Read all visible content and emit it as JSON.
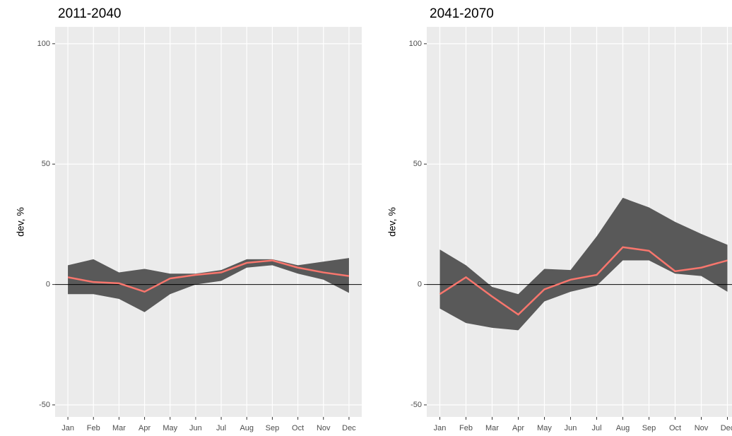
{
  "chart_data": [
    {
      "type": "line",
      "title": "2011-2040",
      "ylabel": "dev, %",
      "categories": [
        "Jan",
        "Feb",
        "Mar",
        "Apr",
        "May",
        "Jun",
        "Jul",
        "Aug",
        "Sep",
        "Oct",
        "Nov",
        "Dec"
      ],
      "values": [
        3,
        1,
        0.5,
        -3,
        2.5,
        4,
        5,
        9,
        10,
        7,
        5,
        3.5
      ],
      "upper": [
        8,
        10.5,
        5,
        6.5,
        4.5,
        4.5,
        6,
        10.5,
        10.5,
        8,
        9.5,
        11
      ],
      "lower": [
        -4,
        -4,
        -6,
        -11.5,
        -4,
        0,
        1.5,
        7,
        8,
        4.5,
        2,
        -3.5
      ],
      "color": "#f8766d",
      "band_color": "#595959",
      "hline": 0,
      "ylim": [
        -55,
        107
      ],
      "yticks": [
        -50,
        0,
        50,
        100
      ],
      "grid": true
    },
    {
      "type": "line",
      "title": "2041-2070",
      "ylabel": "dev, %",
      "categories": [
        "Jan",
        "Feb",
        "Mar",
        "Apr",
        "May",
        "Jun",
        "Jul",
        "Aug",
        "Sep",
        "Oct",
        "Nov",
        "Dec"
      ],
      "values": [
        -4,
        3,
        -5,
        -12.5,
        -2,
        2,
        4,
        15.5,
        14,
        5.5,
        7,
        10
      ],
      "upper": [
        14.5,
        8,
        -1,
        -4,
        6.5,
        6,
        20,
        36,
        32,
        26,
        21,
        16.5
      ],
      "lower": [
        -10,
        -16,
        -18,
        -19,
        -7,
        -3,
        -0.5,
        10,
        10,
        4.5,
        3.5,
        -3
      ],
      "color": "#f8766d",
      "band_color": "#595959",
      "hline": 0,
      "ylim": [
        -55,
        107
      ],
      "yticks": [
        -50,
        0,
        50,
        100
      ],
      "grid": true
    }
  ]
}
